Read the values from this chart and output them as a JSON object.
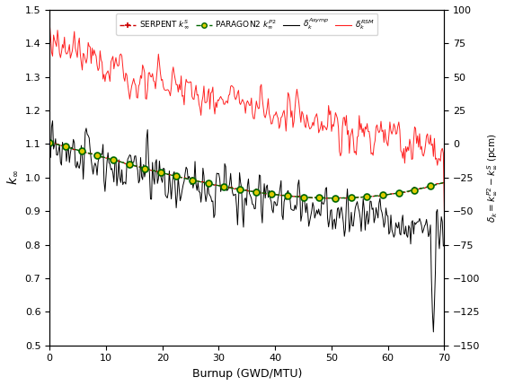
{
  "title": "",
  "xlabel": "Burnup (GWD/MTU)",
  "ylabel_left": "$k_{\\infty}$",
  "ylabel_right": "$\\delta_k = k_{\\infty}^{P2} - k_{\\infty}^S$ (pcm)",
  "xlim": [
    0,
    70
  ],
  "ylim_left": [
    0.5,
    1.5
  ],
  "ylim_right": [
    -150,
    100
  ],
  "xticks": [
    0,
    10,
    20,
    30,
    40,
    50,
    60,
    70
  ],
  "yticks_left": [
    0.5,
    0.6,
    0.7,
    0.8,
    0.9,
    1.0,
    1.1,
    1.2,
    1.3,
    1.4,
    1.5
  ],
  "yticks_right": [
    -150,
    -125,
    -100,
    -75,
    -50,
    -25,
    0,
    25,
    50,
    75,
    100
  ],
  "serpent_color": "#FF0000",
  "paragon2_line_color": "#008000",
  "paragon2_marker_face": "#008000",
  "paragon2_marker_edge": "#FFDD00",
  "asymp_color": "#000000",
  "rsm_color": "#FF0000",
  "background_color": "#ffffff",
  "figsize": [
    5.62,
    4.3
  ],
  "dpi": 100,
  "k_start": 1.105,
  "k_end": 0.775
}
